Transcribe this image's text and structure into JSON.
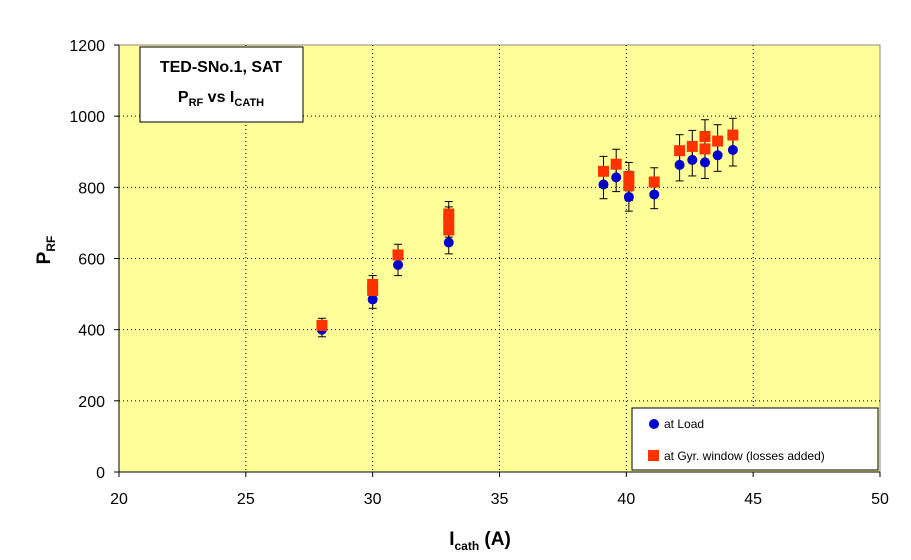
{
  "chart_data": {
    "type": "scatter",
    "title_box": {
      "line1": "TED-SNo.1, SAT",
      "line2_main": "P",
      "line2_sub": "RF",
      "line2_mid": " vs I",
      "line2_sub2": "CATH"
    },
    "xlabel": {
      "main": "I",
      "sub": "cath",
      "rest": " (A)"
    },
    "ylabel": {
      "main": "P",
      "sub": "RF"
    },
    "xlim": [
      20,
      50
    ],
    "ylim": [
      0,
      1200
    ],
    "xticks": [
      20,
      25,
      30,
      35,
      40,
      45,
      50
    ],
    "yticks": [
      0,
      200,
      400,
      600,
      800,
      1000,
      1200
    ],
    "grid": true,
    "legend_position": "bottom-right",
    "plot_background": "#ffff99",
    "series": [
      {
        "name": "at Load",
        "color": "#0000cc",
        "marker": "circle",
        "points": [
          {
            "x": 28,
            "y": 400,
            "err": 20
          },
          {
            "x": 30,
            "y": 485,
            "err": 25
          },
          {
            "x": 30,
            "y": 505,
            "err": 25
          },
          {
            "x": 31,
            "y": 582,
            "err": 30
          },
          {
            "x": 33,
            "y": 645,
            "err": 32
          },
          {
            "x": 33,
            "y": 695,
            "err": 35
          },
          {
            "x": 39.1,
            "y": 808,
            "err": 40
          },
          {
            "x": 39.6,
            "y": 828,
            "err": 40
          },
          {
            "x": 40.1,
            "y": 773,
            "err": 40
          },
          {
            "x": 40.1,
            "y": 803,
            "err": 40
          },
          {
            "x": 41.1,
            "y": 780,
            "err": 40
          },
          {
            "x": 42.1,
            "y": 863,
            "err": 45
          },
          {
            "x": 42.6,
            "y": 877,
            "err": 45
          },
          {
            "x": 43.1,
            "y": 870,
            "err": 45
          },
          {
            "x": 43.6,
            "y": 890,
            "err": 45
          },
          {
            "x": 44.2,
            "y": 905,
            "err": 45
          }
        ]
      },
      {
        "name": "at Gyr. window (losses added)",
        "color": "#ff3300",
        "marker": "square",
        "points": [
          {
            "x": 28,
            "y": 412,
            "err": 20
          },
          {
            "x": 30,
            "y": 527,
            "err": 25
          },
          {
            "x": 30,
            "y": 510,
            "err": 25
          },
          {
            "x": 31,
            "y": 610,
            "err": 30
          },
          {
            "x": 33,
            "y": 680,
            "err": 35
          },
          {
            "x": 33,
            "y": 710,
            "err": 35
          },
          {
            "x": 33,
            "y": 725,
            "err": 35
          },
          {
            "x": 39.1,
            "y": 845,
            "err": 42
          },
          {
            "x": 39.6,
            "y": 865,
            "err": 42
          },
          {
            "x": 40.1,
            "y": 805,
            "err": 40
          },
          {
            "x": 40.1,
            "y": 830,
            "err": 40
          },
          {
            "x": 41.1,
            "y": 815,
            "err": 40
          },
          {
            "x": 42.1,
            "y": 903,
            "err": 45
          },
          {
            "x": 42.6,
            "y": 915,
            "err": 45
          },
          {
            "x": 43.1,
            "y": 908,
            "err": 45
          },
          {
            "x": 43.1,
            "y": 943,
            "err": 47
          },
          {
            "x": 43.6,
            "y": 930,
            "err": 46
          },
          {
            "x": 44.2,
            "y": 947,
            "err": 47
          }
        ]
      }
    ]
  }
}
